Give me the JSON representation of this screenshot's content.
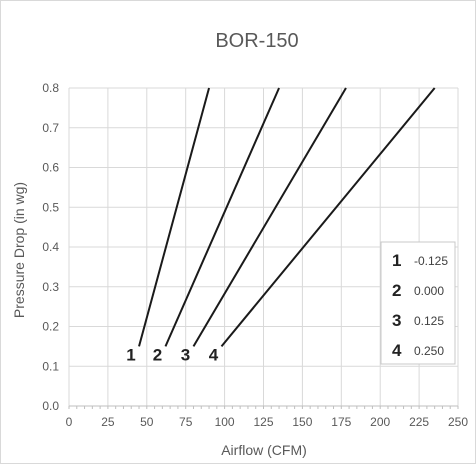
{
  "chart_data": {
    "type": "line",
    "title": "BOR-150",
    "xlabel": "Airflow (CFM)",
    "ylabel": "Pressure Drop (in wg)",
    "xlim": [
      0,
      250
    ],
    "ylim": [
      0,
      0.8
    ],
    "x_ticks": [
      "0",
      "25",
      "50",
      "75",
      "100",
      "125",
      "150",
      "175",
      "200",
      "225",
      "250"
    ],
    "y_ticks": [
      "0.0",
      "0.1",
      "0.2",
      "0.3",
      "0.4",
      "0.5",
      "0.6",
      "0.7",
      "0.8"
    ],
    "grid": true,
    "legend_position": "right",
    "series": [
      {
        "name": "1",
        "legend_value": "-0.125",
        "points": [
          [
            45,
            0.15
          ],
          [
            90,
            0.8
          ]
        ]
      },
      {
        "name": "2",
        "legend_value": "0.000",
        "points": [
          [
            62,
            0.15
          ],
          [
            135,
            0.8
          ]
        ]
      },
      {
        "name": "3",
        "legend_value": "0.125",
        "points": [
          [
            80,
            0.15
          ],
          [
            178,
            0.8
          ]
        ]
      },
      {
        "name": "4",
        "legend_value": "0.250",
        "points": [
          [
            98,
            0.15
          ],
          [
            235,
            0.8
          ]
        ]
      }
    ],
    "colors": {
      "line": "#1a1a1a",
      "grid": "#d9d9d9",
      "text": "#595959"
    }
  }
}
